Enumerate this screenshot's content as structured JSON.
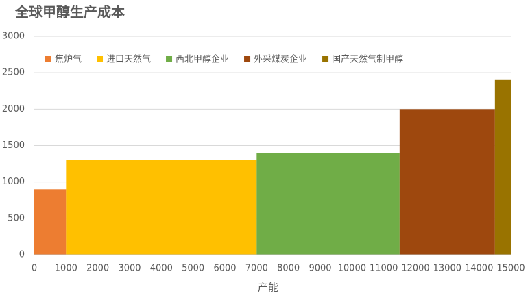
{
  "chart_data": {
    "type": "variable-width-bar",
    "title": "全球甲醇生产成本",
    "x_label": "产能",
    "categories": [
      "焦炉气",
      "进口天然气",
      "西北甲醇企业",
      "外采煤炭企业",
      "国产天然气制甲醇"
    ],
    "values": [
      900,
      1300,
      1400,
      2000,
      2400
    ],
    "colors": [
      "#ed7d31",
      "#ffc000",
      "#70ad47",
      "#9e480e",
      "#997300"
    ],
    "bins": [
      0,
      1000,
      7000,
      11500,
      14500,
      15000
    ],
    "xlim": [
      0,
      15000
    ],
    "xticks": [
      0,
      1000,
      2000,
      3000,
      4000,
      5000,
      6000,
      7000,
      8000,
      9000,
      10000,
      11000,
      12000,
      13000,
      14000,
      15000
    ],
    "ylim": [
      0,
      3000
    ],
    "yticks": [
      0,
      500,
      1000,
      1500,
      2000,
      2500,
      3000
    ],
    "grid": true,
    "legend": "top"
  }
}
